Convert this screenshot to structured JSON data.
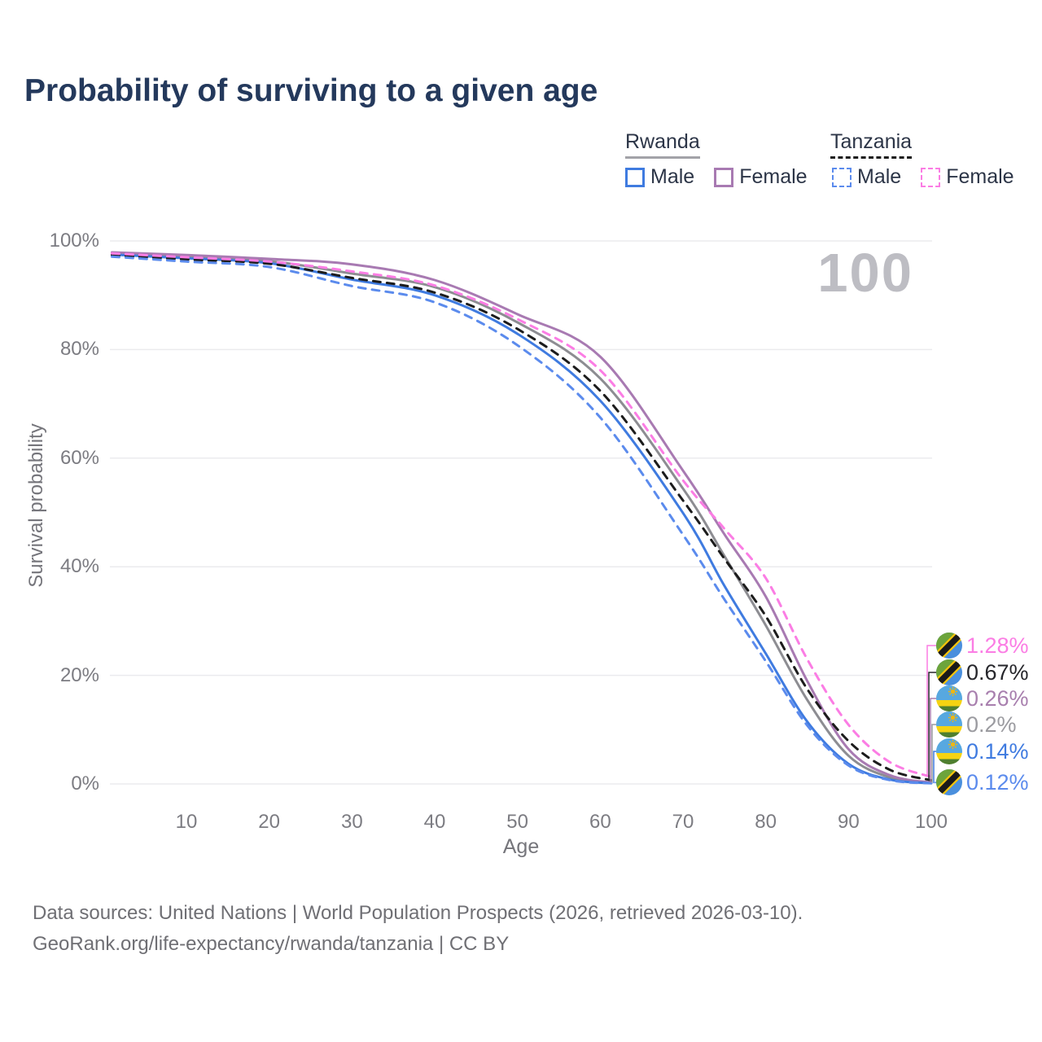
{
  "title": "Probability of surviving to a given age",
  "watermark": "100",
  "legend": {
    "groups": [
      {
        "name": "Rwanda",
        "line_style": "solid",
        "line_color": "#a3a3a8",
        "items": [
          {
            "label": "Male",
            "color": "#3f7be0",
            "dashed": false
          },
          {
            "label": "Female",
            "color": "#a87ab2",
            "dashed": false
          }
        ]
      },
      {
        "name": "Tanzania",
        "line_style": "dashed",
        "line_color": "#1c1c1c",
        "items": [
          {
            "label": "Male",
            "color": "#5b8bed",
            "dashed": true
          },
          {
            "label": "Female",
            "color": "#fb7de4",
            "dashed": true
          }
        ]
      }
    ]
  },
  "chart_data": {
    "type": "line",
    "title": "Probability of surviving to a given age",
    "xlabel": "Age",
    "ylabel": "Survival probability",
    "x_ticks": [
      "10",
      "20",
      "30",
      "40",
      "50",
      "60",
      "70",
      "80",
      "90",
      "100"
    ],
    "y_ticks": [
      "100%",
      "80%",
      "60%",
      "40%",
      "20%",
      "0%"
    ],
    "xlim": [
      1,
      100
    ],
    "ylim": [
      0,
      100
    ],
    "grid": "horizontal-only",
    "x": [
      1,
      10,
      20,
      30,
      40,
      50,
      60,
      70,
      75,
      80,
      85,
      90,
      95,
      100
    ],
    "series": [
      {
        "name": "Rwanda Total",
        "country": "Rwanda",
        "sex": "Both",
        "color": "#8d8d92",
        "dashed": false,
        "values": [
          97.6,
          97.0,
          96.3,
          94.0,
          91.5,
          85.0,
          74.7,
          54.4,
          42.0,
          29.2,
          15.5,
          5.2,
          1.2,
          0.2
        ],
        "end_label": "0.2%"
      },
      {
        "name": "Rwanda Female",
        "country": "Rwanda",
        "sex": "Female",
        "color": "#a87ab2",
        "dashed": false,
        "values": [
          97.9,
          97.4,
          96.7,
          95.7,
          92.8,
          86.5,
          78.7,
          57.7,
          46.0,
          34.5,
          19.0,
          6.4,
          1.6,
          0.26
        ],
        "end_label": "0.26%"
      },
      {
        "name": "Rwanda Male",
        "country": "Rwanda",
        "sex": "Male",
        "color": "#3f7be0",
        "dashed": false,
        "values": [
          97.5,
          96.8,
          95.9,
          92.9,
          90.0,
          82.9,
          70.6,
          49.9,
          36.5,
          24.0,
          11.5,
          3.7,
          0.8,
          0.14
        ],
        "end_label": "0.14%"
      },
      {
        "name": "Tanzania Total",
        "country": "Tanzania",
        "sex": "Both",
        "color": "#1c1c1c",
        "dashed": true,
        "values": [
          97.4,
          96.6,
          95.8,
          93.2,
          90.5,
          83.8,
          72.4,
          52.2,
          41.5,
          30.9,
          17.5,
          7.9,
          2.6,
          0.67
        ],
        "end_label": "0.67%"
      },
      {
        "name": "Tanzania Female",
        "country": "Tanzania",
        "sex": "Female",
        "color": "#fb7de4",
        "dashed": true,
        "values": [
          97.7,
          97.0,
          96.2,
          94.4,
          91.8,
          85.6,
          76.2,
          55.9,
          47.0,
          37.9,
          23.0,
          10.9,
          4.0,
          1.28
        ],
        "end_label": "1.28%"
      },
      {
        "name": "Tanzania Male",
        "country": "Tanzania",
        "sex": "Male",
        "color": "#5b8bed",
        "dashed": true,
        "values": [
          97.1,
          96.2,
          95.2,
          91.7,
          88.7,
          80.8,
          67.5,
          45.9,
          34.0,
          22.6,
          10.8,
          3.4,
          0.7,
          0.12
        ],
        "end_label": "0.12%"
      }
    ],
    "end_labels": [
      {
        "value": "1.28%",
        "series": "Tanzania Female",
        "flag": "tanzania",
        "color": "#fb7de4"
      },
      {
        "value": "0.67%",
        "series": "Tanzania Total",
        "flag": "tanzania",
        "color": "#26262b"
      },
      {
        "value": "0.26%",
        "series": "Rwanda Female",
        "flag": "rwanda",
        "color": "#a87fae"
      },
      {
        "value": "0.2%",
        "series": "Rwanda Total",
        "flag": "rwanda",
        "color": "#9b9ba0"
      },
      {
        "value": "0.14%",
        "series": "Rwanda Male",
        "flag": "rwanda",
        "color": "#3f7be0"
      },
      {
        "value": "0.12%",
        "series": "Tanzania Male",
        "flag": "tanzania",
        "color": "#5b8bed"
      }
    ]
  },
  "footer": {
    "line1": "Data sources: United Nations | World Population Prospects (2026, retrieved 2026-03-10).",
    "line2": "GeoRank.org/life-expectancy/rwanda/tanzania | CC BY"
  }
}
